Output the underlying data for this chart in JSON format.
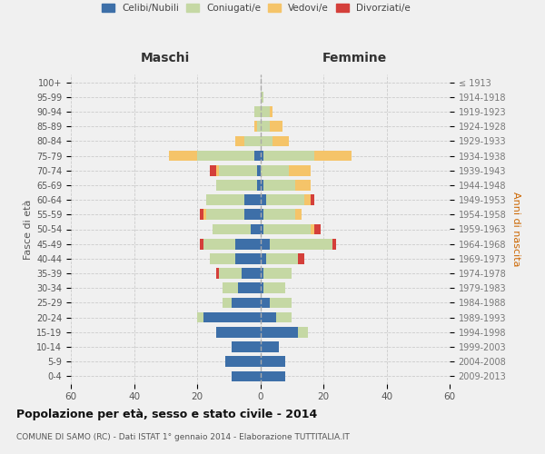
{
  "age_groups": [
    "0-4",
    "5-9",
    "10-14",
    "15-19",
    "20-24",
    "25-29",
    "30-34",
    "35-39",
    "40-44",
    "45-49",
    "50-54",
    "55-59",
    "60-64",
    "65-69",
    "70-74",
    "75-79",
    "80-84",
    "85-89",
    "90-94",
    "95-99",
    "100+"
  ],
  "birth_years": [
    "2009-2013",
    "2004-2008",
    "1999-2003",
    "1994-1998",
    "1989-1993",
    "1984-1988",
    "1979-1983",
    "1974-1978",
    "1969-1973",
    "1964-1968",
    "1959-1963",
    "1954-1958",
    "1949-1953",
    "1944-1948",
    "1939-1943",
    "1934-1938",
    "1929-1933",
    "1924-1928",
    "1919-1923",
    "1914-1918",
    "≤ 1913"
  ],
  "male": {
    "celibi": [
      9,
      11,
      9,
      14,
      18,
      9,
      7,
      6,
      8,
      8,
      3,
      5,
      5,
      1,
      1,
      2,
      0,
      0,
      0,
      0,
      0
    ],
    "coniugati": [
      0,
      0,
      0,
      0,
      2,
      3,
      5,
      7,
      8,
      10,
      12,
      12,
      12,
      13,
      12,
      18,
      5,
      1,
      2,
      0,
      0
    ],
    "vedovi": [
      0,
      0,
      0,
      0,
      0,
      0,
      0,
      0,
      0,
      0,
      0,
      1,
      0,
      0,
      1,
      9,
      3,
      1,
      0,
      0,
      0
    ],
    "divorziati": [
      0,
      0,
      0,
      0,
      0,
      0,
      0,
      1,
      0,
      1,
      0,
      1,
      0,
      0,
      2,
      0,
      0,
      0,
      0,
      0,
      0
    ]
  },
  "female": {
    "nubili": [
      8,
      8,
      6,
      12,
      5,
      3,
      1,
      1,
      2,
      3,
      1,
      1,
      2,
      1,
      0,
      1,
      0,
      0,
      0,
      0,
      0
    ],
    "coniugate": [
      0,
      0,
      0,
      3,
      5,
      7,
      7,
      9,
      10,
      20,
      15,
      10,
      12,
      10,
      9,
      16,
      4,
      3,
      3,
      1,
      0
    ],
    "vedove": [
      0,
      0,
      0,
      0,
      0,
      0,
      0,
      0,
      0,
      0,
      1,
      2,
      2,
      5,
      7,
      12,
      5,
      4,
      1,
      0,
      0
    ],
    "divorziate": [
      0,
      0,
      0,
      0,
      0,
      0,
      0,
      0,
      2,
      1,
      2,
      0,
      1,
      0,
      0,
      0,
      0,
      0,
      0,
      0,
      0
    ]
  },
  "colors": {
    "celibi": "#3d6fa8",
    "coniugati": "#c5d8a4",
    "vedovi": "#f5c469",
    "divorziati": "#d43f3a"
  },
  "xlim": 60,
  "title": "Popolazione per età, sesso e stato civile - 2014",
  "subtitle": "COMUNE DI SAMO (RC) - Dati ISTAT 1° gennaio 2014 - Elaborazione TUTTITALIA.IT",
  "ylabel_left": "Fasce di età",
  "ylabel_right": "Anni di nascita",
  "xlabel_maschi": "Maschi",
  "xlabel_femmine": "Femmine",
  "legend_labels": [
    "Celibi/Nubili",
    "Coniugati/e",
    "Vedovi/e",
    "Divorziati/e"
  ],
  "bg_color": "#f0f0f0",
  "grid_color": "#cccccc"
}
